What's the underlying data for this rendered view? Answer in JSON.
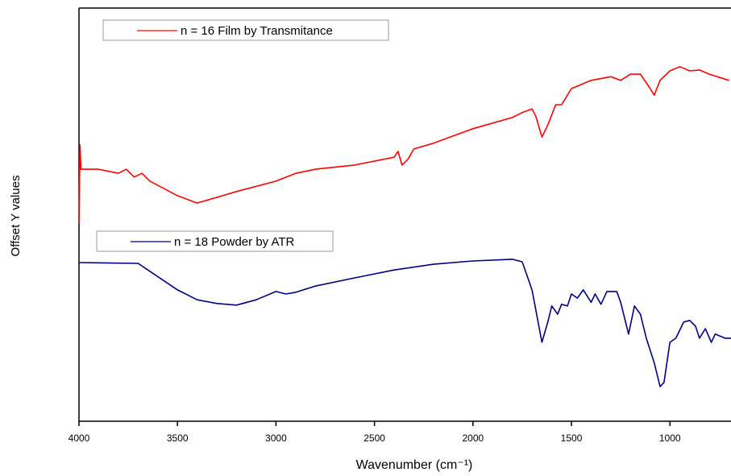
{
  "chart_data": {
    "type": "line",
    "x_label": "Wavenumber (cm⁻¹)",
    "y_label": "Offset Y values",
    "xlim": [
      4000,
      690
    ],
    "xticks": [
      4000,
      3500,
      3000,
      2500,
      2000,
      1500,
      1000
    ],
    "ylim": [
      0,
      100
    ],
    "series": [
      {
        "name": "n = 16 Film by Transmitance",
        "color": "#ff0000",
        "x": [
          4000,
          3995,
          3990,
          3900,
          3800,
          3760,
          3720,
          3680,
          3640,
          3600,
          3500,
          3400,
          3300,
          3200,
          3000,
          2900,
          2800,
          2600,
          2400,
          2380,
          2360,
          2330,
          2300,
          2200,
          2000,
          1800,
          1750,
          1700,
          1680,
          1650,
          1620,
          1580,
          1550,
          1500,
          1450,
          1400,
          1300,
          1250,
          1200,
          1150,
          1100,
          1080,
          1050,
          1000,
          950,
          900,
          850,
          800,
          700
        ],
        "values": [
          47.8,
          66.9,
          61.0,
          61.0,
          60.0,
          61.0,
          59.1,
          60.0,
          58.1,
          57.1,
          54.6,
          52.8,
          54.2,
          55.6,
          58.1,
          60.0,
          61.0,
          62.0,
          63.9,
          65.3,
          62.0,
          63.4,
          65.9,
          67.3,
          70.8,
          73.5,
          74.7,
          75.6,
          73.7,
          68.8,
          71.7,
          76.6,
          76.6,
          80.5,
          81.5,
          82.5,
          83.4,
          82.5,
          84.0,
          84.0,
          80.5,
          78.9,
          82.5,
          84.8,
          85.8,
          84.8,
          85.0,
          84.0,
          82.5
        ]
      },
      {
        "name": "n = 18 Powder by ATR",
        "color": "#000080",
        "x": [
          4000,
          3700,
          3650,
          3500,
          3400,
          3300,
          3200,
          3100,
          3000,
          2950,
          2900,
          2800,
          2600,
          2400,
          2200,
          2000,
          1800,
          1750,
          1700,
          1650,
          1620,
          1600,
          1570,
          1550,
          1520,
          1500,
          1470,
          1440,
          1400,
          1380,
          1350,
          1320,
          1270,
          1250,
          1210,
          1180,
          1150,
          1120,
          1080,
          1050,
          1030,
          1000,
          970,
          930,
          900,
          870,
          850,
          820,
          790,
          770,
          720,
          690
        ],
        "values": [
          38.4,
          38.2,
          36.6,
          31.8,
          29.4,
          28.5,
          28.1,
          29.4,
          31.4,
          30.8,
          31.2,
          32.7,
          34.7,
          36.6,
          38.0,
          38.8,
          39.2,
          38.6,
          31.8,
          19.1,
          24.0,
          27.9,
          25.9,
          28.3,
          27.9,
          30.8,
          29.8,
          31.8,
          28.8,
          30.8,
          28.3,
          31.4,
          31.4,
          28.8,
          21.1,
          27.9,
          25.9,
          20.1,
          14.2,
          8.4,
          9.4,
          19.1,
          20.1,
          24.0,
          24.4,
          23.0,
          20.1,
          22.4,
          19.1,
          21.1,
          20.1,
          20.1
        ]
      }
    ]
  }
}
